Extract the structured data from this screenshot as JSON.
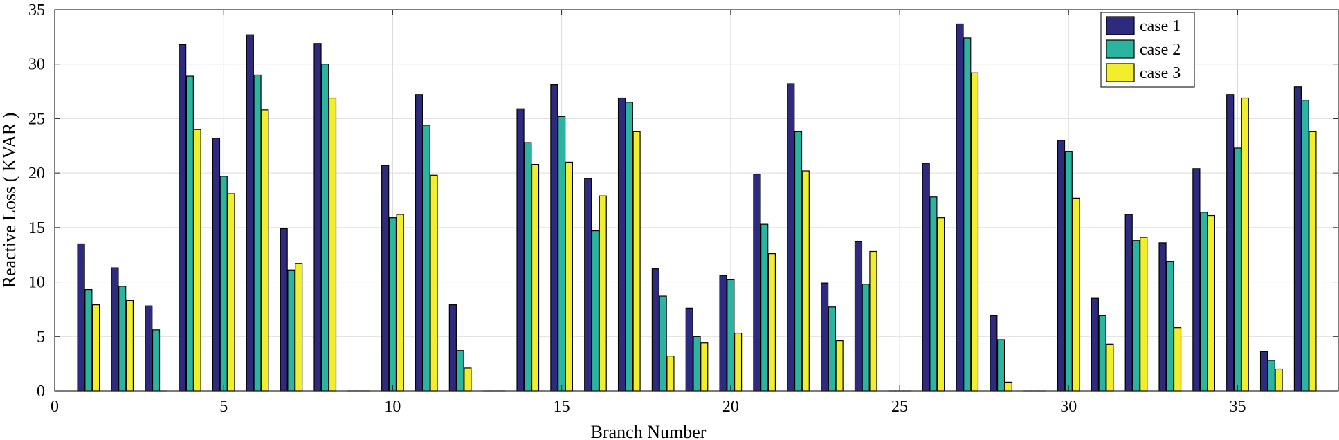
{
  "chart_data": {
    "type": "bar",
    "xlabel": "Branch Number",
    "ylabel": "Reactive Loss ( KVAR )",
    "xlim": [
      0,
      38
    ],
    "ylim": [
      0,
      35
    ],
    "xticks": [
      0,
      5,
      10,
      15,
      20,
      25,
      30,
      35
    ],
    "yticks": [
      0,
      5,
      10,
      15,
      20,
      25,
      30,
      35
    ],
    "grid": true,
    "legend_position": "top-right",
    "categories": [
      1,
      2,
      3,
      4,
      5,
      6,
      7,
      8,
      9,
      10,
      11,
      12,
      13,
      14,
      15,
      16,
      17,
      18,
      19,
      20,
      21,
      22,
      23,
      24,
      25,
      26,
      27,
      28,
      29,
      30,
      31,
      32,
      33,
      34,
      35,
      36,
      37
    ],
    "series": [
      {
        "name": "case 1",
        "color": "#2e2a7e",
        "values": [
          13.5,
          11.3,
          7.8,
          31.8,
          23.2,
          32.7,
          14.9,
          31.9,
          0,
          20.7,
          27.2,
          7.9,
          0,
          25.9,
          28.1,
          19.5,
          26.9,
          11.2,
          7.6,
          10.6,
          19.9,
          28.2,
          9.9,
          13.7,
          0,
          20.9,
          33.7,
          6.9,
          0,
          23.0,
          8.5,
          16.2,
          13.6,
          20.4,
          27.2,
          3.6,
          27.9
        ]
      },
      {
        "name": "case 2",
        "color": "#2bb5a0",
        "values": [
          9.3,
          9.6,
          5.6,
          28.9,
          19.7,
          29.0,
          11.1,
          30.0,
          0,
          15.9,
          24.4,
          3.7,
          0,
          22.8,
          25.2,
          14.7,
          26.5,
          8.7,
          5.0,
          10.2,
          15.3,
          23.8,
          7.7,
          9.8,
          0,
          17.8,
          32.4,
          4.7,
          0,
          22.0,
          6.9,
          13.8,
          11.9,
          16.4,
          22.3,
          2.8,
          26.7
        ]
      },
      {
        "name": "case 3",
        "color": "#f2ee2c",
        "values": [
          7.9,
          8.3,
          0,
          24.0,
          18.1,
          25.8,
          11.7,
          26.9,
          0,
          16.2,
          19.8,
          2.1,
          0,
          20.8,
          21.0,
          17.9,
          23.8,
          3.2,
          4.4,
          5.3,
          12.6,
          20.2,
          4.6,
          12.8,
          0,
          15.9,
          29.2,
          0.8,
          0,
          17.7,
          4.3,
          14.1,
          5.8,
          16.1,
          26.9,
          2.0,
          23.8
        ]
      }
    ]
  }
}
